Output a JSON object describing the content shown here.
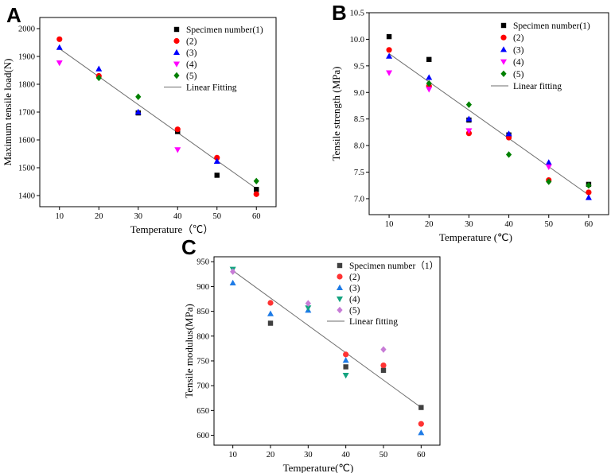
{
  "chart_data": [
    {
      "id": "A",
      "type": "scatter",
      "panel_label": "A",
      "xlabel": "Temperature（℃）",
      "ylabel": "Maximum tensile load(N)",
      "xlim": [
        5,
        65
      ],
      "ylim": [
        1360,
        2040
      ],
      "xticks": [
        10,
        20,
        30,
        40,
        50,
        60
      ],
      "yticks": [
        1400,
        1500,
        1600,
        1700,
        1800,
        1900,
        2000
      ],
      "series": [
        {
          "name": "Specimen number(1)",
          "marker": "square",
          "color": "#000000",
          "x": [
            30,
            40,
            50,
            60
          ],
          "y": [
            1697,
            1630,
            1473,
            1422
          ]
        },
        {
          "name": "(2)",
          "marker": "circle",
          "color": "#ff0000",
          "x": [
            10,
            20,
            40,
            50,
            60
          ],
          "y": [
            1962,
            1830,
            1638,
            1536,
            1405
          ]
        },
        {
          "name": "(3)",
          "marker": "triangle-up",
          "color": "#0000ff",
          "x": [
            10,
            20,
            30,
            50
          ],
          "y": [
            1932,
            1855,
            1700,
            1523
          ]
        },
        {
          "name": "(4)",
          "marker": "triangle-down",
          "color": "#ff00ff",
          "x": [
            10,
            40
          ],
          "y": [
            1877,
            1565
          ]
        },
        {
          "name": "(5)",
          "marker": "diamond",
          "color": "#008000",
          "x": [
            20,
            30,
            60
          ],
          "y": [
            1823,
            1755,
            1452
          ]
        }
      ],
      "fit": {
        "name": "Linear Fitting",
        "x": [
          10,
          60
        ],
        "y": [
          1928,
          1425
        ]
      }
    },
    {
      "id": "B",
      "type": "scatter",
      "panel_label": "B",
      "xlabel": "Temperature (℃)",
      "ylabel": "Tensile strength (MPa)",
      "xlim": [
        5,
        65
      ],
      "ylim": [
        6.7,
        10.5
      ],
      "xticks": [
        10,
        20,
        30,
        40,
        50,
        60
      ],
      "yticks": [
        7.0,
        7.5,
        8.0,
        8.5,
        9.0,
        9.5,
        10.0,
        10.5
      ],
      "series": [
        {
          "name": "Specimen number(1)",
          "marker": "square",
          "color": "#000000",
          "x": [
            10,
            20,
            30,
            40,
            60
          ],
          "y": [
            10.05,
            9.62,
            8.48,
            8.2,
            7.27
          ]
        },
        {
          "name": "(2)",
          "marker": "circle",
          "color": "#ff0000",
          "x": [
            10,
            20,
            30,
            40,
            50,
            60
          ],
          "y": [
            9.8,
            9.12,
            8.23,
            8.15,
            7.35,
            7.12
          ]
        },
        {
          "name": "(3)",
          "marker": "triangle-up",
          "color": "#0000ff",
          "x": [
            10,
            20,
            30,
            40,
            50,
            60
          ],
          "y": [
            9.68,
            9.28,
            8.5,
            8.22,
            7.68,
            7.02
          ]
        },
        {
          "name": "(4)",
          "marker": "triangle-down",
          "color": "#ff00ff",
          "x": [
            10,
            20,
            30,
            50
          ],
          "y": [
            9.37,
            9.06,
            8.28,
            7.6
          ]
        },
        {
          "name": "(5)",
          "marker": "diamond",
          "color": "#008000",
          "x": [
            20,
            30,
            40,
            50,
            60
          ],
          "y": [
            9.17,
            8.77,
            7.83,
            7.32,
            7.25
          ]
        }
      ],
      "fit": {
        "name": "Linear fitting",
        "x": [
          10,
          60
        ],
        "y": [
          9.73,
          7.07
        ]
      }
    },
    {
      "id": "C",
      "type": "scatter",
      "panel_label": "C",
      "xlabel": "Temperature(℃)",
      "ylabel": "Tensile modulus(MPa)",
      "xlim": [
        5,
        65
      ],
      "ylim": [
        580,
        960
      ],
      "xticks": [
        10,
        20,
        30,
        40,
        50,
        60
      ],
      "yticks": [
        600,
        650,
        700,
        750,
        800,
        850,
        900,
        950
      ],
      "series": [
        {
          "name": "Specimen number（1）",
          "marker": "square",
          "color": "#404040",
          "x": [
            20,
            40,
            50,
            60
          ],
          "y": [
            826,
            738,
            731,
            656
          ]
        },
        {
          "name": "(2)",
          "marker": "circle",
          "color": "#ff3333",
          "x": [
            20,
            40,
            50,
            60
          ],
          "y": [
            867,
            763,
            741,
            623
          ]
        },
        {
          "name": "(3)",
          "marker": "triangle-up",
          "color": "#1e7be6",
          "x": [
            10,
            20,
            30,
            40,
            60
          ],
          "y": [
            907,
            845,
            852,
            751,
            605
          ]
        },
        {
          "name": "(4)",
          "marker": "triangle-down",
          "color": "#14a37f",
          "x": [
            10,
            30,
            40
          ],
          "y": [
            935,
            857,
            721
          ]
        },
        {
          "name": "(5)",
          "marker": "diamond",
          "color": "#c77cd6",
          "x": [
            10,
            30,
            50
          ],
          "y": [
            930,
            866,
            773
          ]
        }
      ],
      "fit": {
        "name": "Linear fitting",
        "x": [
          10,
          60
        ],
        "y": [
          932,
          656
        ]
      }
    }
  ]
}
